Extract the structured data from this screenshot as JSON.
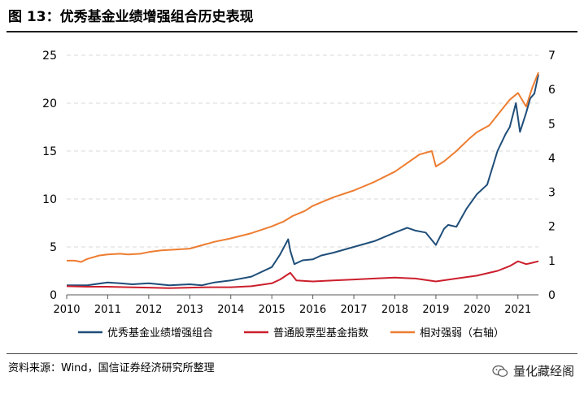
{
  "figure": {
    "title": "图 13：优秀基金业绩增强组合历史表现",
    "source": "资料来源：Wind，国信证券经济研究所整理",
    "brand": "量化藏经阁"
  },
  "colors": {
    "series1": "#1f4e79",
    "series2": "#cc1f2d",
    "series3": "#ed7d31",
    "grid": "#d9d9d9",
    "axis": "#595959"
  },
  "chart_data": {
    "type": "line",
    "title": "",
    "xlabel": "",
    "ylabel": "",
    "x_ticks": [
      "2010",
      "2011",
      "2012",
      "2013",
      "2014",
      "2015",
      "2016",
      "2017",
      "2018",
      "2019",
      "2020",
      "2021"
    ],
    "y_left_ticks": [
      "0",
      "5",
      "10",
      "15",
      "20",
      "25"
    ],
    "y_right_ticks": [
      "0",
      "1",
      "2",
      "3",
      "4",
      "5",
      "6",
      "7"
    ],
    "ylim_left": [
      0,
      25
    ],
    "ylim_right": [
      0,
      7
    ],
    "xlim": [
      2010.0,
      2021.5
    ],
    "legend_position": "bottom",
    "series": [
      {
        "name": "优秀基金业绩增强组合",
        "axis": "left",
        "x": [
          2010.0,
          2010.5,
          2011.0,
          2011.3,
          2011.6,
          2012.0,
          2012.5,
          2013.0,
          2013.3,
          2013.6,
          2014.0,
          2014.5,
          2015.0,
          2015.2,
          2015.4,
          2015.45,
          2015.55,
          2015.75,
          2016.0,
          2016.2,
          2016.5,
          2017.0,
          2017.5,
          2018.0,
          2018.3,
          2018.5,
          2018.75,
          2019.0,
          2019.2,
          2019.3,
          2019.5,
          2019.75,
          2020.0,
          2020.25,
          2020.5,
          2020.7,
          2020.8,
          2020.95,
          2021.05,
          2021.2,
          2021.3,
          2021.4,
          2021.5
        ],
        "values": [
          1.0,
          1.0,
          1.3,
          1.2,
          1.1,
          1.2,
          1.0,
          1.1,
          1.0,
          1.3,
          1.5,
          1.9,
          2.9,
          4.2,
          5.8,
          4.6,
          3.2,
          3.6,
          3.7,
          4.1,
          4.4,
          5.0,
          5.6,
          6.5,
          7.0,
          6.7,
          6.5,
          5.2,
          6.9,
          7.3,
          7.1,
          9.0,
          10.5,
          11.5,
          15.0,
          16.8,
          17.5,
          20.0,
          17.0,
          19.0,
          20.5,
          21.0,
          23.0
        ]
      },
      {
        "name": "普通股票型基金指数",
        "axis": "left",
        "x": [
          2010.0,
          2010.5,
          2011.0,
          2011.5,
          2012.0,
          2012.5,
          2013.0,
          2013.5,
          2014.0,
          2014.5,
          2015.0,
          2015.2,
          2015.45,
          2015.6,
          2016.0,
          2016.5,
          2017.0,
          2017.5,
          2018.0,
          2018.5,
          2019.0,
          2019.5,
          2020.0,
          2020.5,
          2020.8,
          2021.0,
          2021.2,
          2021.3,
          2021.5
        ],
        "values": [
          0.9,
          0.85,
          0.85,
          0.8,
          0.75,
          0.7,
          0.75,
          0.8,
          0.8,
          0.9,
          1.2,
          1.6,
          2.3,
          1.5,
          1.4,
          1.5,
          1.6,
          1.7,
          1.8,
          1.7,
          1.4,
          1.7,
          2.0,
          2.5,
          3.0,
          3.5,
          3.2,
          3.3,
          3.5
        ]
      },
      {
        "name": "相对强弱（右轴）",
        "axis": "right",
        "x": [
          2010.0,
          2010.2,
          2010.35,
          2010.5,
          2010.8,
          2011.0,
          2011.3,
          2011.5,
          2011.8,
          2012.0,
          2012.3,
          2012.6,
          2013.0,
          2013.3,
          2013.6,
          2014.0,
          2014.5,
          2015.0,
          2015.3,
          2015.5,
          2015.8,
          2016.0,
          2016.5,
          2017.0,
          2017.5,
          2018.0,
          2018.3,
          2018.6,
          2018.9,
          2019.0,
          2019.2,
          2019.5,
          2019.8,
          2020.0,
          2020.3,
          2020.6,
          2020.8,
          2021.0,
          2021.2,
          2021.35,
          2021.5
        ],
        "values": [
          1.0,
          1.0,
          0.96,
          1.05,
          1.15,
          1.18,
          1.2,
          1.18,
          1.2,
          1.25,
          1.3,
          1.32,
          1.35,
          1.45,
          1.55,
          1.65,
          1.8,
          2.0,
          2.15,
          2.3,
          2.45,
          2.6,
          2.85,
          3.05,
          3.3,
          3.6,
          3.85,
          4.1,
          4.2,
          3.75,
          3.9,
          4.2,
          4.55,
          4.75,
          4.95,
          5.4,
          5.7,
          5.9,
          5.5,
          6.05,
          6.5
        ]
      }
    ]
  }
}
